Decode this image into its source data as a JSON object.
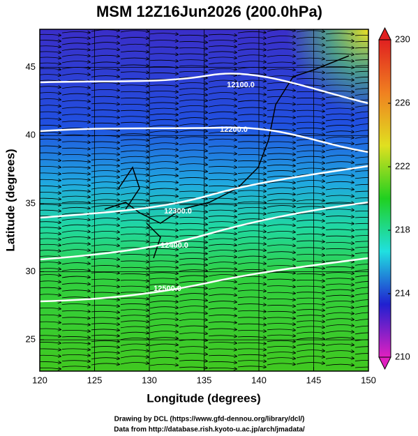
{
  "title": "MSM 12Z16Jun2026 (200.0hPa)",
  "x_label": "Longitude (degrees)",
  "y_label": "Latitude  (degrees)",
  "xlim": [
    120,
    150
  ],
  "ylim": [
    22.7,
    47.8
  ],
  "xticks": [
    120,
    125,
    130,
    135,
    140,
    145,
    150
  ],
  "yticks": [
    25,
    30,
    35,
    40,
    45
  ],
  "colorbar": {
    "lim": [
      210,
      230
    ],
    "ticks": [
      210,
      214,
      218,
      222,
      226,
      230
    ],
    "colors": [
      "#e020c0",
      "#2020d0",
      "#20e0e0",
      "#20d020",
      "#e0e020",
      "#f08020",
      "#e02020"
    ]
  },
  "contours": [
    {
      "value": 12100,
      "label": "12100.0"
    },
    {
      "value": 12200,
      "label": "12200.0"
    },
    {
      "value": 12300,
      "label": "12300.0"
    },
    {
      "value": 12400,
      "label": "12400.0"
    },
    {
      "value": 12500,
      "label": "12500.0"
    }
  ],
  "footer": [
    "Drawing by DCL (https://www.gfd-dennou.org/library/dcl/)",
    "Data from http://database.rish.kyoto-u.ac.jp/arch/jmadata/"
  ]
}
